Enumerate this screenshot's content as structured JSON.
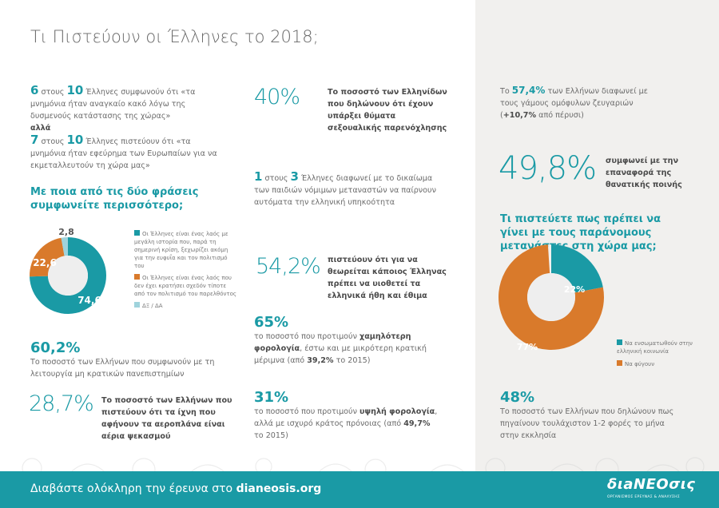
{
  "title": "Τι Πιστεύουν οι Έλληνες το 2018;",
  "memoranda": {
    "n1": "6",
    "mid1": " στους ",
    "d1": "10",
    "t1": " Έλληνες συμφωνούν ότι «τα μνημόνια ήταν αναγκαίο κακό λόγω της δυσμενούς κατάστασης της χώρας»",
    "but": "αλλά",
    "n2": "7",
    "mid2": " στους ",
    "d2": "10",
    "t2": " Έλληνες πιστεύουν ότι «τα μνημόνια ήταν εφεύρημα των Ευρωπαίων για να εκμεταλλευτούν τη χώρα μας»"
  },
  "question1": "Με ποια από τις δύο φράσεις συμφωνείτε περισσότερο;",
  "chart_data": [
    {
      "type": "pie",
      "donut": true,
      "values": [
        74.6,
        22.6,
        2.8
      ],
      "labels": [
        "74,6",
        "22,6",
        "2,8"
      ],
      "legend": [
        "Οι Έλληνες είναι ένας λαός με μεγάλη ιστορία που, παρά τη σημερινή κρίση, ξεχωρίζει ακόμη για την ευφυΐα και τον πολιτισμό του",
        "Οι Έλληνες είναι ένας λαός που δεν έχει κρατήσει σχεδόν τίποτε από τον πολιτισμό του παρελθόντος",
        "ΔΞ / ΔΑ"
      ],
      "colors": [
        "#1a9aa5",
        "#d97a2b",
        "#9fd3dc"
      ],
      "legend_placement": "right"
    },
    {
      "type": "pie",
      "donut": true,
      "values": [
        22,
        77
      ],
      "labels": [
        "22%",
        "77%"
      ],
      "legend": [
        "Να ενσωματωθούν στην ελληνική κοινωνία",
        "Να φύγουν"
      ],
      "colors": [
        "#1a9aa5",
        "#d97a2b"
      ],
      "legend_placement": "bottom-right"
    }
  ],
  "universities": {
    "value": "60,2%",
    "text": "Το ποσοστό των Ελλήνων που συμφωνούν με τη λειτουργία μη κρατικών πανεπιστημίων"
  },
  "chemtrails": {
    "value": "28,7%",
    "text": "Το ποσοστό των Ελλήνων που πιστεύουν ότι τα ίχνη που αφήνουν τα αεροπλάνα είναι αέρια ψεκασμού"
  },
  "harassment": {
    "value": "40%",
    "text": "Το ποσοστό των Ελληνίδων που δηλώνουν ότι έχουν υπάρξει θύματα σεξουαλικής παρενόχλησης"
  },
  "citizenship": {
    "n": "1",
    "mid": " στους ",
    "d": "3",
    "text": " Έλληνες διαφωνεί με το δικαίωμα των παιδιών νόμιμων μεταναστών να παίρνουν αυτόματα την ελληνική υπηκοότητα"
  },
  "customs": {
    "value": "54,2%",
    "text": "πιστεύουν ότι για να θεωρείται κάποιος Έλληνας πρέπει να υιοθετεί τα ελληνικά ήθη και έθιμα"
  },
  "lowtax": {
    "value": "65%",
    "a": "το ποσοστό που προτιμούν ",
    "b": "χαμηλότερη φορολογία",
    "c": ", έστω και με μικρότερη κρατική μέριμνα (από ",
    "d": "39,2%",
    "e": " το 2015)"
  },
  "hightax": {
    "value": "31%",
    "a": "το ποσοστό που προτιμούν ",
    "b": "υψηλή φορολογία",
    "c": ", αλλά με ισχυρό κράτος πρόνοιας (από ",
    "d": "49,7%",
    "e": " το 2015)"
  },
  "samesex": {
    "a": "Το ",
    "b": "57,4%",
    "c": " των Ελλήνων διαφωνεί με τους γάμους ομόφυλων ζευγαριών (",
    "d": "+10,7%",
    "e": " από πέρυσι)"
  },
  "deathpenalty": {
    "value": "49,8%",
    "text": "συμφωνεί με την επαναφορά της θανατικής ποινής"
  },
  "question2": "Τι πιστεύετε πως πρέπει να γίνει με τους παράνομους μετανάστες στη χώρα μας;",
  "church": {
    "value": "48%",
    "text": "Το ποσοστό των Ελλήνων που δηλώνουν πως πηγαίνουν τουλάχιστον 1-2 φορές το μήνα στην εκκλησία"
  },
  "footer": {
    "a": "Διαβάστε ολόκληρη την έρευνα στο ",
    "link": "dianeosis.org",
    "logo": "διaNEOσις",
    "logo_sub": "ΟΡΓΑΝΙΣΜΟΣ ΕΡΕΥΝΑΣ & ΑΝΑΛΥΣΗΣ"
  }
}
